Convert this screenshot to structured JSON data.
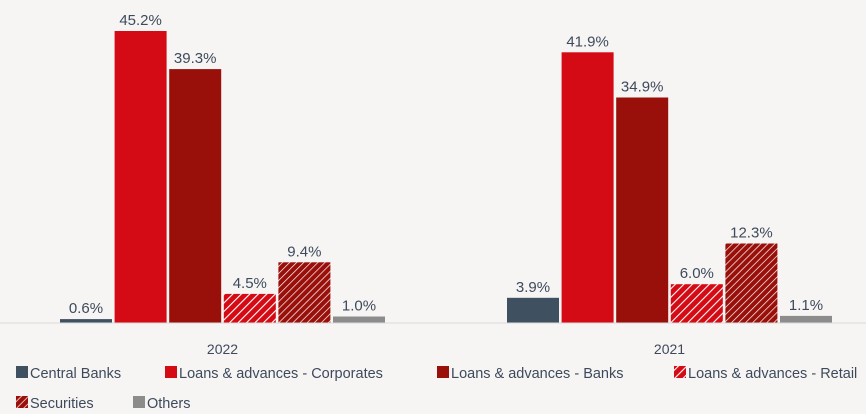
{
  "chart_data": {
    "type": "bar",
    "categories": [
      "2022",
      "2021"
    ],
    "series": [
      {
        "name": "Central Banks",
        "values": [
          0.6,
          3.9
        ],
        "labels": [
          "0.6%",
          "3.9%"
        ],
        "color": "#3f5061",
        "pattern": "solid"
      },
      {
        "name": "Loans & advances - Corporates",
        "values": [
          45.2,
          41.9
        ],
        "labels": [
          "45.2%",
          "41.9%"
        ],
        "color": "#d40a14",
        "pattern": "solid"
      },
      {
        "name": "Loans & advances - Banks",
        "values": [
          39.3,
          34.9
        ],
        "labels": [
          "39.3%",
          "34.9%"
        ],
        "color": "#990f0a",
        "pattern": "solid"
      },
      {
        "name": "Loans & advances - Retail",
        "values": [
          4.5,
          6.0
        ],
        "labels": [
          "4.5%",
          "6.0%"
        ],
        "color": "#d40a14",
        "pattern": "light-hatch"
      },
      {
        "name": "Securities",
        "values": [
          9.4,
          12.3
        ],
        "labels": [
          "9.4%",
          "12.3%"
        ],
        "color": "#990f0a",
        "pattern": "dense-hatch"
      },
      {
        "name": "Others",
        "values": [
          1.0,
          1.1
        ],
        "labels": [
          "1.0%",
          "1.1%"
        ],
        "color": "#8c8c8c",
        "pattern": "solid"
      }
    ],
    "ylim": [
      0,
      45.2
    ],
    "grid": false,
    "legend_position": "bottom"
  }
}
